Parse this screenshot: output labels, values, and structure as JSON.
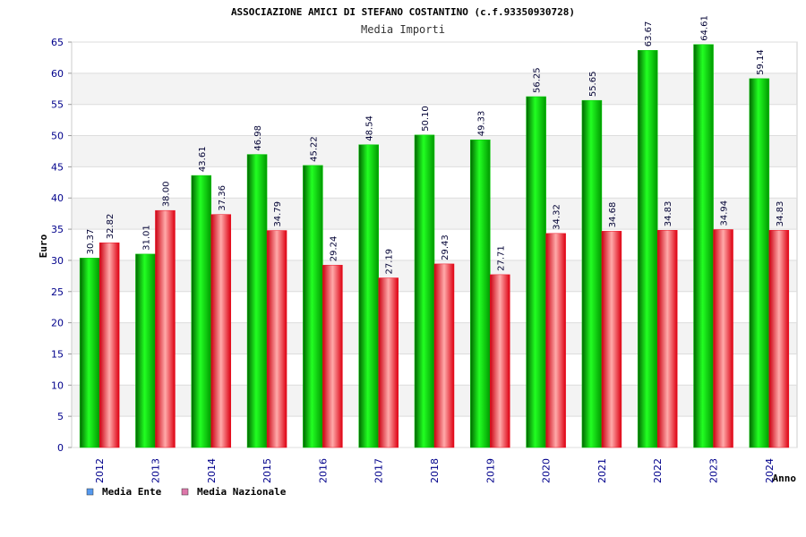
{
  "chart_data": {
    "type": "bar",
    "title": "ASSOCIAZIONE AMICI DI STEFANO COSTANTINO (c.f.93350930728)",
    "subtitle": "Media Importi",
    "xlabel": "Anno",
    "ylabel": "Euro",
    "ylim": [
      0,
      65
    ],
    "yticks": [
      "0",
      "5",
      "10",
      "15",
      "20",
      "25",
      "30",
      "35",
      "40",
      "45",
      "50",
      "55",
      "60",
      "65"
    ],
    "categories": [
      "2012",
      "2013",
      "2014",
      "2015",
      "2016",
      "2017",
      "2018",
      "2019",
      "2020",
      "2021",
      "2022",
      "2023",
      "2024"
    ],
    "series": [
      {
        "name": "Media Ente",
        "color": "#00cc00",
        "legend_color": "#5599ee",
        "values": [
          30.37,
          31.01,
          43.61,
          46.98,
          45.22,
          48.54,
          50.1,
          49.33,
          56.25,
          55.65,
          63.67,
          64.61,
          59.14
        ],
        "labels": [
          "30.37",
          "31.01",
          "43.61",
          "46.98",
          "45.22",
          "48.54",
          "50.10",
          "49.33",
          "56.25",
          "55.65",
          "63.67",
          "64.61",
          "59.14"
        ]
      },
      {
        "name": "Media Nazionale",
        "color": "#ee1122",
        "legend_color": "#dd77aa",
        "values": [
          32.82,
          38.0,
          37.36,
          34.79,
          29.24,
          27.19,
          29.43,
          27.71,
          34.32,
          34.68,
          34.83,
          34.94,
          34.83
        ],
        "labels": [
          "32.82",
          "38.00",
          "37.36",
          "34.79",
          "29.24",
          "27.19",
          "29.43",
          "27.71",
          "34.32",
          "34.68",
          "34.83",
          "34.94",
          "34.83"
        ]
      }
    ],
    "grid": true,
    "legend_position": "bottom-left"
  }
}
